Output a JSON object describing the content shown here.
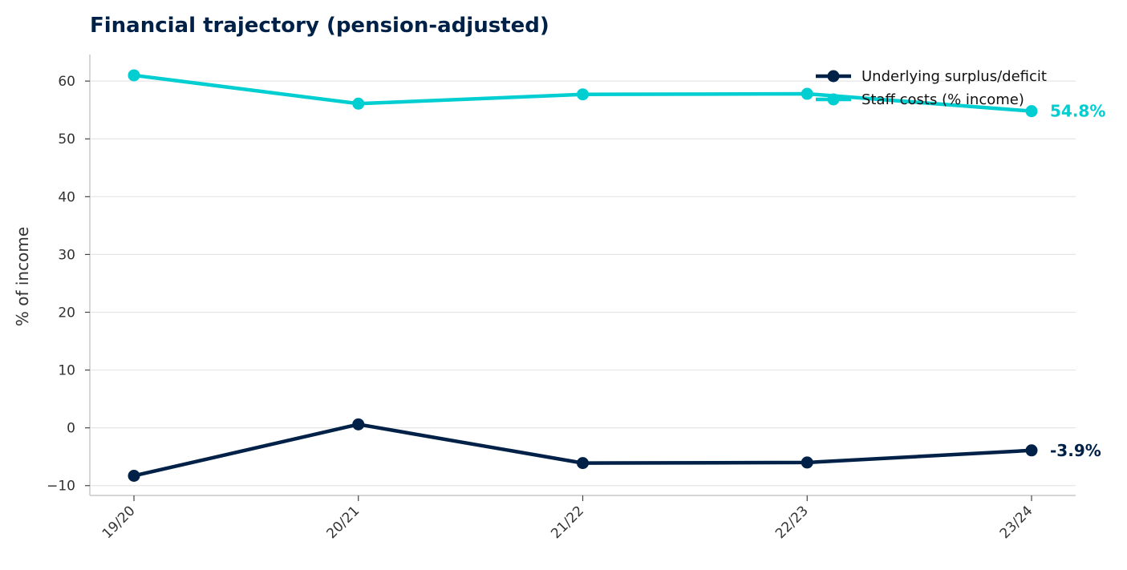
{
  "chart_data": {
    "type": "line",
    "title": "Financial trajectory (pension-adjusted)",
    "xlabel": "",
    "ylabel": "% of income",
    "categories": [
      "19/20",
      "20/21",
      "21/22",
      "22/23",
      "23/24"
    ],
    "yticks": [
      -10,
      0,
      10,
      20,
      30,
      40,
      50,
      60
    ],
    "ylim": [
      -11.7,
      64.6
    ],
    "grid": "horizontal",
    "legend_position": "top-right",
    "series": [
      {
        "name": "Underlying surplus/deficit",
        "values": [
          -8.3,
          0.6,
          -6.1,
          -6.0,
          -3.9
        ],
        "color": "#002147",
        "end_label": "-3.9%"
      },
      {
        "name": "Staff costs (% income)",
        "values": [
          61.0,
          56.1,
          57.7,
          57.8,
          54.8
        ],
        "color": "#00CED1",
        "end_label": "54.8%"
      }
    ],
    "colors": {
      "title": "#002147",
      "grid": "#e6e6e6",
      "axis": "#c8c8c8"
    }
  }
}
